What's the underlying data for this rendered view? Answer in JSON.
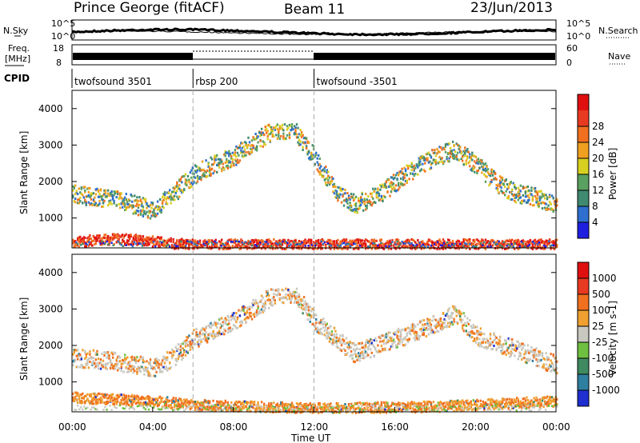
{
  "header": {
    "station": "Prince George (fitACF)",
    "beam": "Beam 11",
    "date": "23/Jun/2013"
  },
  "left_labels": {
    "nsky": "N.Sky",
    "freq_line1": "Freq.",
    "freq_line2": "[MHz]",
    "cpid": "CPID"
  },
  "right_labels": {
    "nsearch": "N.Search",
    "nave": "Nave"
  },
  "noise_axis": {
    "left_top": "10^5",
    "left_bottom": "10^0",
    "right_top": "10^5",
    "right_bottom": "10^0"
  },
  "freq_axis": {
    "left_top": "18",
    "left_bottom": "8",
    "right_top": "60",
    "right_bottom": "0"
  },
  "cpid_segments": [
    {
      "label": "twofsound 3501",
      "start": 0,
      "end": 6
    },
    {
      "label": "rbsp 200",
      "start": 6,
      "end": 12
    },
    {
      "label": "twofsound -3501",
      "start": 12,
      "end": 24
    }
  ],
  "time_axis": {
    "label": "Time UT",
    "ticks": [
      "00:00",
      "04:00",
      "08:00",
      "12:00",
      "16:00",
      "20:00",
      "00:00"
    ]
  },
  "chart_data": [
    {
      "type": "heatmap",
      "title": "Power",
      "xlabel": "Time UT",
      "ylabel": "Slant Range [km]",
      "xlim": [
        0,
        24
      ],
      "ylim": [
        180,
        4500
      ],
      "yticks": [
        "1000",
        "2000",
        "3000",
        "4000"
      ],
      "colorbar": {
        "label": "Power [dB]",
        "ticks": [
          "4",
          "8",
          "12",
          "16",
          "20",
          "24",
          "28"
        ],
        "colors": [
          "#1f1fe0",
          "#2e6fd0",
          "#3f8a70",
          "#5aa060",
          "#d8d020",
          "#f0a020",
          "#f07020",
          "#e83a20",
          "#e01010"
        ]
      },
      "bands": [
        {
          "description": "lower band",
          "points": [
            [
              0,
              350
            ],
            [
              1,
              420
            ],
            [
              2,
              450
            ],
            [
              3,
              440
            ],
            [
              4,
              380
            ],
            [
              5,
              330
            ],
            [
              6,
              300
            ]
          ],
          "value": 26
        },
        {
          "description": "echo band",
          "points": [
            [
              0,
              1700
            ],
            [
              1,
              1600
            ],
            [
              2,
              1550
            ],
            [
              3,
              1400
            ],
            [
              4,
              1250
            ],
            [
              5,
              1700
            ],
            [
              6,
              2200
            ],
            [
              7,
              2500
            ],
            [
              8,
              2700
            ],
            [
              9,
              3100
            ],
            [
              10,
              3450
            ],
            [
              11,
              3450
            ],
            [
              12,
              2700
            ],
            [
              13,
              1800
            ],
            [
              14,
              1400
            ],
            [
              15,
              1600
            ],
            [
              16,
              2000
            ],
            [
              17,
              2400
            ],
            [
              18,
              2700
            ],
            [
              19,
              2900
            ],
            [
              20,
              2500
            ],
            [
              21,
              2000
            ],
            [
              22,
              1700
            ],
            [
              23,
              1600
            ],
            [
              24,
              1400
            ]
          ],
          "value": 16
        }
      ]
    },
    {
      "type": "heatmap",
      "title": "Velocity",
      "xlabel": "Time UT",
      "ylabel": "Slant Range [km]",
      "xlim": [
        0,
        24
      ],
      "ylim": [
        180,
        4500
      ],
      "yticks": [
        "1000",
        "2000",
        "3000",
        "4000"
      ],
      "colorbar": {
        "label": "Velocity [m s-1]",
        "ticks": [
          "1000",
          "500",
          "100",
          "25",
          "-25",
          "-100",
          "-500",
          "-1000"
        ],
        "colors": [
          "#1f2fd0",
          "#2f7fa0",
          "#3f8a60",
          "#6fc040",
          "#c8c8c0",
          "#f0a030",
          "#f07020",
          "#e83a20",
          "#e01010"
        ]
      },
      "bands": [
        {
          "description": "lower band",
          "points": [
            [
              0,
              600
            ],
            [
              2,
              550
            ],
            [
              4,
              500
            ],
            [
              6,
              400
            ],
            [
              12,
              300
            ],
            [
              18,
              350
            ],
            [
              24,
              500
            ]
          ],
          "value": -100
        },
        {
          "description": "echo band",
          "points": [
            [
              0,
              1700
            ],
            [
              2,
              1600
            ],
            [
              4,
              1400
            ],
            [
              5,
              1700
            ],
            [
              6,
              2200
            ],
            [
              8,
              2700
            ],
            [
              10,
              3400
            ],
            [
              11,
              3450
            ],
            [
              12,
              2700
            ],
            [
              14,
              1800
            ],
            [
              16,
              2200
            ],
            [
              18,
              2600
            ],
            [
              19,
              2900
            ],
            [
              20,
              2300
            ],
            [
              22,
              1900
            ],
            [
              24,
              1500
            ]
          ],
          "value": -25
        }
      ]
    }
  ]
}
